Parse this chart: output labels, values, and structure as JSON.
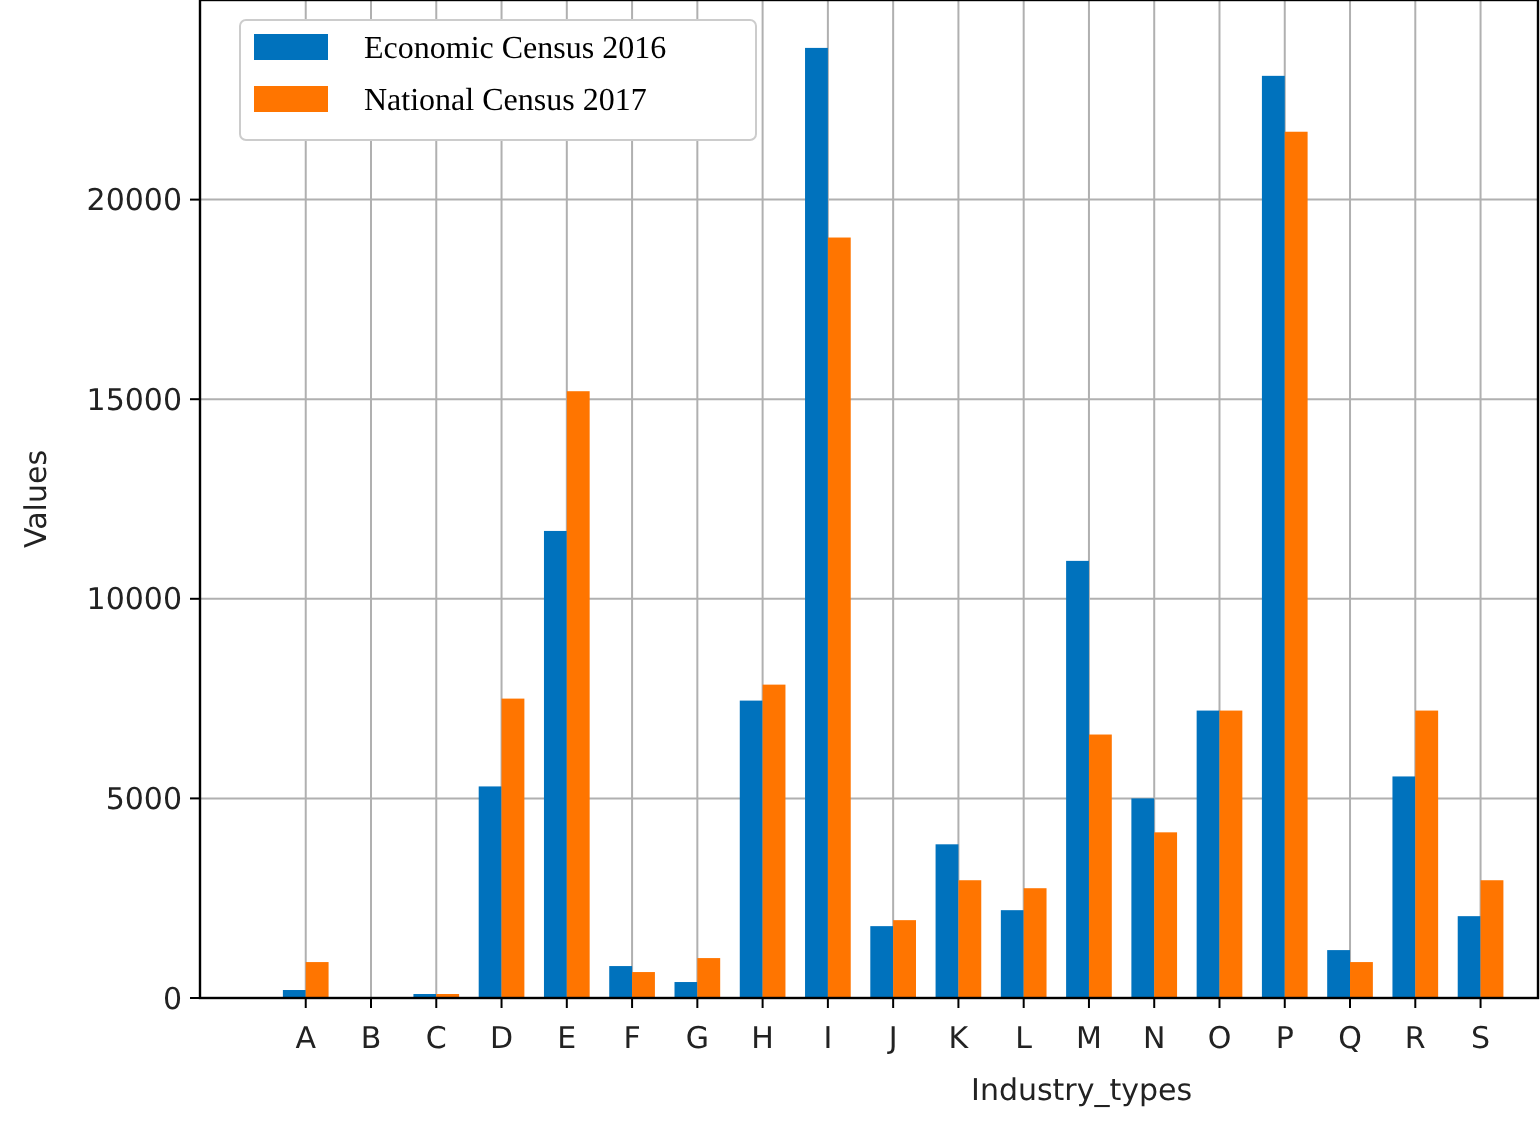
{
  "chart_data": {
    "type": "bar",
    "xlabel": "Industry_types",
    "ylabel": "Values",
    "categories": [
      "A",
      "B",
      "C",
      "D",
      "E",
      "F",
      "G",
      "H",
      "I",
      "J",
      "K",
      "L",
      "M",
      "N",
      "O",
      "P",
      "Q",
      "R",
      "S"
    ],
    "series": [
      {
        "name": "Economic Census 2016",
        "color": "#0072bd",
        "values": [
          200,
          0,
          100,
          5300,
          11700,
          800,
          400,
          7450,
          23800,
          1800,
          3850,
          2200,
          10950,
          5000,
          7200,
          23100,
          1200,
          5550,
          2050
        ]
      },
      {
        "name": "National Census 2017",
        "color": "#ff7500",
        "values": [
          900,
          0,
          100,
          7500,
          15200,
          650,
          1000,
          7850,
          19050,
          1950,
          2950,
          2750,
          6600,
          4150,
          7200,
          21700,
          900,
          7200,
          2950
        ]
      }
    ],
    "ylim": [
      0,
      25000
    ],
    "yticks": [
      0,
      5000,
      10000,
      15000,
      20000
    ],
    "grid": true,
    "legend": "top left"
  }
}
